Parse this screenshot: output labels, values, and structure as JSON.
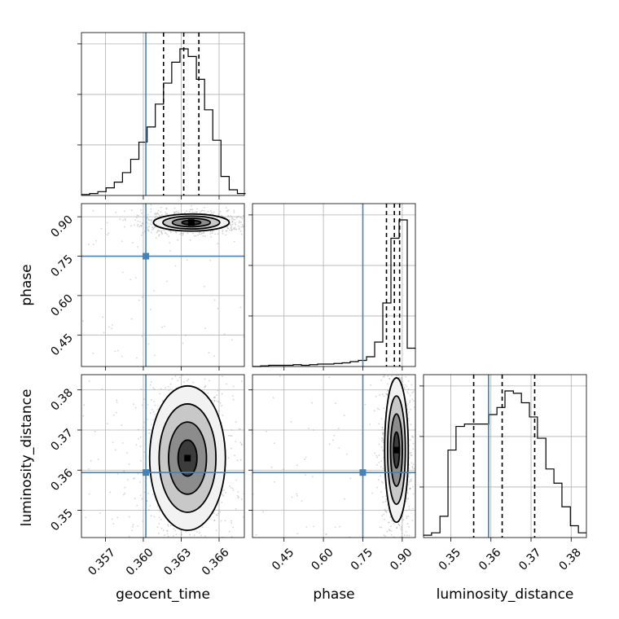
{
  "chart_data": {
    "type": "corner",
    "parameters": [
      "geocent_time",
      "phase",
      "luminosity_distance"
    ],
    "truth_color": "#4682b4",
    "truths": {
      "geocent_time": 0.3602,
      "phase": 0.75,
      "luminosity_distance": 0.3594
    },
    "axes": {
      "geocent_time": {
        "range": [
          0.3551,
          0.368
        ],
        "ticks": [
          0.357,
          0.36,
          0.363,
          0.366
        ],
        "tick_labels": [
          "0.357",
          "0.360",
          "0.363",
          "0.366"
        ]
      },
      "phase": {
        "range": [
          0.33,
          0.95
        ],
        "ticks": [
          0.45,
          0.6,
          0.75,
          0.9
        ],
        "tick_labels": [
          "0.45",
          "0.60",
          "0.75",
          "0.90"
        ]
      },
      "luminosity_distance": {
        "range": [
          0.3432,
          0.3838
        ],
        "ticks": [
          0.35,
          0.36,
          0.37,
          0.38
        ],
        "tick_labels": [
          "0.35",
          "0.36",
          "0.37",
          "0.38"
        ]
      }
    },
    "histograms": {
      "geocent_time": {
        "bin_edges": [
          0.3551,
          0.35575,
          0.3564,
          0.35705,
          0.3577,
          0.35835,
          0.359,
          0.35965,
          0.3603,
          0.36095,
          0.3616,
          0.36225,
          0.3629,
          0.36355,
          0.3642,
          0.36485,
          0.3655,
          0.36615,
          0.3668,
          0.36745,
          0.3681
        ],
        "counts": [
          1,
          2,
          4,
          8,
          14,
          24,
          38,
          56,
          72,
          96,
          118,
          140,
          154,
          146,
          122,
          90,
          58,
          20,
          6,
          2
        ],
        "quantiles": [
          0.3616,
          0.3632,
          0.3644
        ]
      },
      "phase": {
        "bin_edges": [
          0.33,
          0.361,
          0.392,
          0.423,
          0.454,
          0.485,
          0.516,
          0.547,
          0.578,
          0.609,
          0.64,
          0.671,
          0.702,
          0.733,
          0.764,
          0.795,
          0.826,
          0.857,
          0.888,
          0.919,
          0.95
        ],
        "counts": [
          0,
          1,
          2,
          2,
          2,
          3,
          2,
          3,
          4,
          4,
          5,
          6,
          8,
          10,
          16,
          40,
          104,
          210,
          240,
          30
        ],
        "quantiles": [
          0.84,
          0.87,
          0.89
        ]
      },
      "luminosity_distance": {
        "bin_edges": [
          0.3432,
          0.3452,
          0.3473,
          0.3493,
          0.3513,
          0.3534,
          0.3554,
          0.3574,
          0.3595,
          0.3615,
          0.3635,
          0.3656,
          0.3676,
          0.3696,
          0.3716,
          0.3737,
          0.3757,
          0.3777,
          0.3798,
          0.3818,
          0.3838
        ],
        "counts": [
          2,
          4,
          18,
          74,
          94,
          96,
          96,
          96,
          104,
          110,
          124,
          122,
          114,
          102,
          84,
          58,
          46,
          26,
          10,
          4
        ],
        "quantiles": [
          0.3557,
          0.3628,
          0.3709
        ]
      }
    },
    "contour_panels": [
      {
        "x": "geocent_time",
        "y": "phase",
        "center": [
          0.3638,
          0.878
        ],
        "sigma": [
          0.0012,
          0.013
        ],
        "levels": [
          0.5,
          1.0,
          1.5,
          2.0
        ]
      },
      {
        "x": "geocent_time",
        "y": "luminosity_distance",
        "center": [
          0.3635,
          0.363
        ],
        "sigma": [
          0.0012,
          0.0072
        ],
        "levels": [
          0.5,
          1.0,
          1.5,
          2.0
        ]
      },
      {
        "x": "phase",
        "y": "luminosity_distance",
        "center": [
          0.878,
          0.365
        ],
        "sigma": [
          0.018,
          0.0072
        ],
        "levels": [
          0.5,
          1.0,
          1.5,
          2.0
        ]
      }
    ],
    "grid": true
  }
}
